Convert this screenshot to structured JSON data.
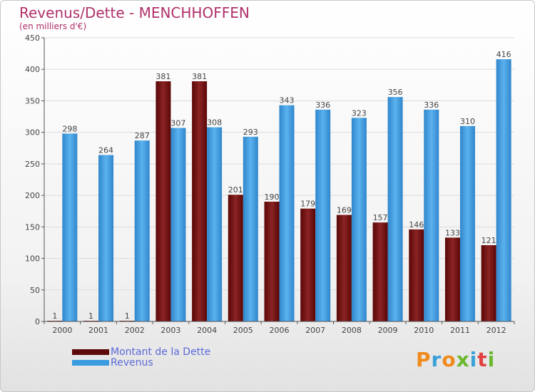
{
  "chart_data": {
    "type": "bar",
    "title": "Revenus/Dette - MENCHHOFFEN",
    "subtitle": "(en milliers d'€)",
    "categories": [
      "2000",
      "2001",
      "2002",
      "2003",
      "2004",
      "2005",
      "2006",
      "2007",
      "2008",
      "2009",
      "2010",
      "2011",
      "2012"
    ],
    "series": [
      {
        "name": "Montant de la Dette",
        "color": "#7a1010",
        "values": [
          1,
          1,
          1,
          381,
          381,
          201,
          190,
          179,
          169,
          157,
          146,
          133,
          121
        ]
      },
      {
        "name": "Revenus",
        "color": "#3b9be0",
        "values": [
          298,
          264,
          287,
          307,
          308,
          293,
          343,
          336,
          323,
          356,
          336,
          310,
          416
        ]
      }
    ],
    "ylim": [
      0,
      450
    ],
    "yticks": [
      0,
      50,
      100,
      150,
      200,
      250,
      300,
      350,
      400,
      450
    ],
    "grid": true,
    "legend_position": "bottom-left"
  },
  "logo": {
    "letters": [
      {
        "ch": "P",
        "color": "#f08a1c"
      },
      {
        "ch": "r",
        "color": "#3aa0d8"
      },
      {
        "ch": "o",
        "color": "#f08a1c"
      },
      {
        "ch": "x",
        "color": "#6ab82e"
      },
      {
        "ch": "i",
        "color": "#3aa0d8"
      },
      {
        "ch": "t",
        "color": "#e04040"
      },
      {
        "ch": "i",
        "color": "#6ab82e"
      }
    ]
  }
}
